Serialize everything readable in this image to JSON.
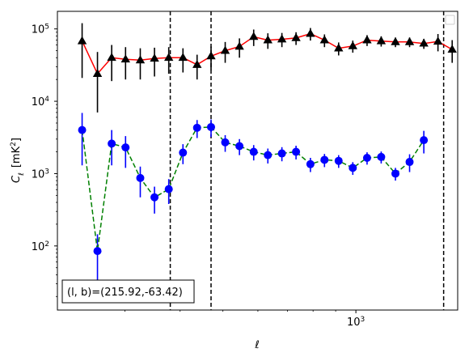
{
  "chart_data": {
    "type": "scatter",
    "xlabel": "ℓ",
    "ylabel": "C_ℓ [mK²]",
    "ylabel_parts": {
      "main": "C",
      "sub": "ℓ",
      "unit_open": "[mK",
      "unit_sup": "2",
      "unit_close": "]"
    },
    "x_scale": "log",
    "y_scale": "log",
    "xlim": [
      211,
      1700
    ],
    "ylim": [
      13,
      175000
    ],
    "x_ticks": [
      {
        "value": 1000,
        "label": "10",
        "exp": "3"
      }
    ],
    "y_ticks": [
      {
        "value": 100,
        "label": "10",
        "exp": "2"
      },
      {
        "value": 1000,
        "label": "10",
        "exp": "3"
      },
      {
        "value": 10000,
        "label": "10",
        "exp": "4"
      },
      {
        "value": 100000,
        "label": "10",
        "exp": "5"
      }
    ],
    "grid": false,
    "legend": {
      "position": "top-right",
      "entries": []
    },
    "annotation": "(l, b)=(215.92,-63.42)",
    "vlines_x": [
      380,
      470,
      1580
    ],
    "series": [
      {
        "marker": "triangle",
        "marker_color": "#000000",
        "line_color": "#ff0000",
        "line_style": "solid",
        "points": [
          {
            "x": 240,
            "y": 68000,
            "yerr": [
              47000,
              52000
            ]
          },
          {
            "x": 260,
            "y": 24000,
            "yerr": [
              17000,
              24000
            ]
          },
          {
            "x": 280,
            "y": 40000,
            "yerr": [
              21000,
              20000
            ]
          },
          {
            "x": 301,
            "y": 38000,
            "yerr": [
              18000,
              18000
            ]
          },
          {
            "x": 325,
            "y": 37000,
            "yerr": [
              17000,
              17000
            ]
          },
          {
            "x": 350,
            "y": 39000,
            "yerr": [
              17000,
              16000
            ]
          },
          {
            "x": 377,
            "y": 40000,
            "yerr": [
              16000,
              16000
            ]
          },
          {
            "x": 406,
            "y": 40000,
            "yerr": [
              15000,
              14000
            ]
          },
          {
            "x": 437,
            "y": 32000,
            "yerr": [
              12000,
              12000
            ]
          },
          {
            "x": 470,
            "y": 42000,
            "yerr": [
              15000,
              15000
            ]
          },
          {
            "x": 506,
            "y": 50000,
            "yerr": [
              16000,
              16000
            ]
          },
          {
            "x": 545,
            "y": 57000,
            "yerr": [
              17000,
              17000
            ]
          },
          {
            "x": 587,
            "y": 78000,
            "yerr": [
              20000,
              20000
            ]
          },
          {
            "x": 632,
            "y": 70000,
            "yerr": [
              17000,
              17000
            ]
          },
          {
            "x": 680,
            "y": 72000,
            "yerr": [
              16000,
              16000
            ]
          },
          {
            "x": 732,
            "y": 75000,
            "yerr": [
              15000,
              15000
            ]
          },
          {
            "x": 789,
            "y": 86000,
            "yerr": [
              17000,
              17000
            ]
          },
          {
            "x": 849,
            "y": 70000,
            "yerr": [
              14000,
              14000
            ]
          },
          {
            "x": 914,
            "y": 54000,
            "yerr": [
              11000,
              11000
            ]
          },
          {
            "x": 984,
            "y": 58000,
            "yerr": [
              11000,
              11000
            ]
          },
          {
            "x": 1060,
            "y": 70000,
            "yerr": [
              12000,
              12000
            ]
          },
          {
            "x": 1141,
            "y": 68000,
            "yerr": [
              11000,
              11000
            ]
          },
          {
            "x": 1229,
            "y": 66000,
            "yerr": [
              10000,
              10000
            ]
          },
          {
            "x": 1323,
            "y": 66000,
            "yerr": [
              10000,
              10000
            ]
          },
          {
            "x": 1425,
            "y": 63000,
            "yerr": [
              10000,
              10000
            ]
          },
          {
            "x": 1534,
            "y": 67000,
            "yerr": [
              18000,
              18000
            ]
          },
          {
            "x": 1652,
            "y": 52000,
            "yerr": [
              18000,
              18000
            ]
          }
        ]
      },
      {
        "marker": "circle",
        "marker_color": "#0000ff",
        "line_color": "#008000",
        "line_style": "dashed",
        "points": [
          {
            "x": 240,
            "y": 4000,
            "yerr": [
              2700,
              2900
            ]
          },
          {
            "x": 260,
            "y": 85,
            "yerr": [
              55,
              60
            ]
          },
          {
            "x": 280,
            "y": 2600,
            "yerr": [
              1300,
              1400
            ]
          },
          {
            "x": 301,
            "y": 2300,
            "yerr": [
              1100,
              1000
            ]
          },
          {
            "x": 325,
            "y": 870,
            "yerr": [
              400,
              380
            ]
          },
          {
            "x": 350,
            "y": 470,
            "yerr": [
              190,
              190
            ]
          },
          {
            "x": 377,
            "y": 610,
            "yerr": [
              230,
              230
            ]
          },
          {
            "x": 406,
            "y": 1950,
            "yerr": [
              600,
              600
            ]
          },
          {
            "x": 437,
            "y": 4300,
            "yerr": [
              1200,
              1200
            ]
          },
          {
            "x": 470,
            "y": 4400,
            "yerr": [
              1200,
              1200
            ]
          },
          {
            "x": 506,
            "y": 2700,
            "yerr": [
              700,
              700
            ]
          },
          {
            "x": 545,
            "y": 2400,
            "yerr": [
              600,
              600
            ]
          },
          {
            "x": 587,
            "y": 2000,
            "yerr": [
              480,
              480
            ]
          },
          {
            "x": 632,
            "y": 1800,
            "yerr": [
              420,
              420
            ]
          },
          {
            "x": 680,
            "y": 1900,
            "yerr": [
              420,
              420
            ]
          },
          {
            "x": 732,
            "y": 2000,
            "yerr": [
              430,
              430
            ]
          },
          {
            "x": 789,
            "y": 1350,
            "yerr": [
              300,
              300
            ]
          },
          {
            "x": 849,
            "y": 1550,
            "yerr": [
              320,
              320
            ]
          },
          {
            "x": 914,
            "y": 1500,
            "yerr": [
              300,
              300
            ]
          },
          {
            "x": 984,
            "y": 1200,
            "yerr": [
              240,
              240
            ]
          },
          {
            "x": 1060,
            "y": 1650,
            "yerr": [
              320,
              320
            ]
          },
          {
            "x": 1141,
            "y": 1700,
            "yerr": [
              320,
              320
            ]
          },
          {
            "x": 1229,
            "y": 1000,
            "yerr": [
              200,
              200
            ]
          },
          {
            "x": 1323,
            "y": 1450,
            "yerr": [
              400,
              400
            ]
          },
          {
            "x": 1425,
            "y": 2900,
            "yerr": [
              1000,
              1000
            ]
          }
        ]
      }
    ]
  }
}
